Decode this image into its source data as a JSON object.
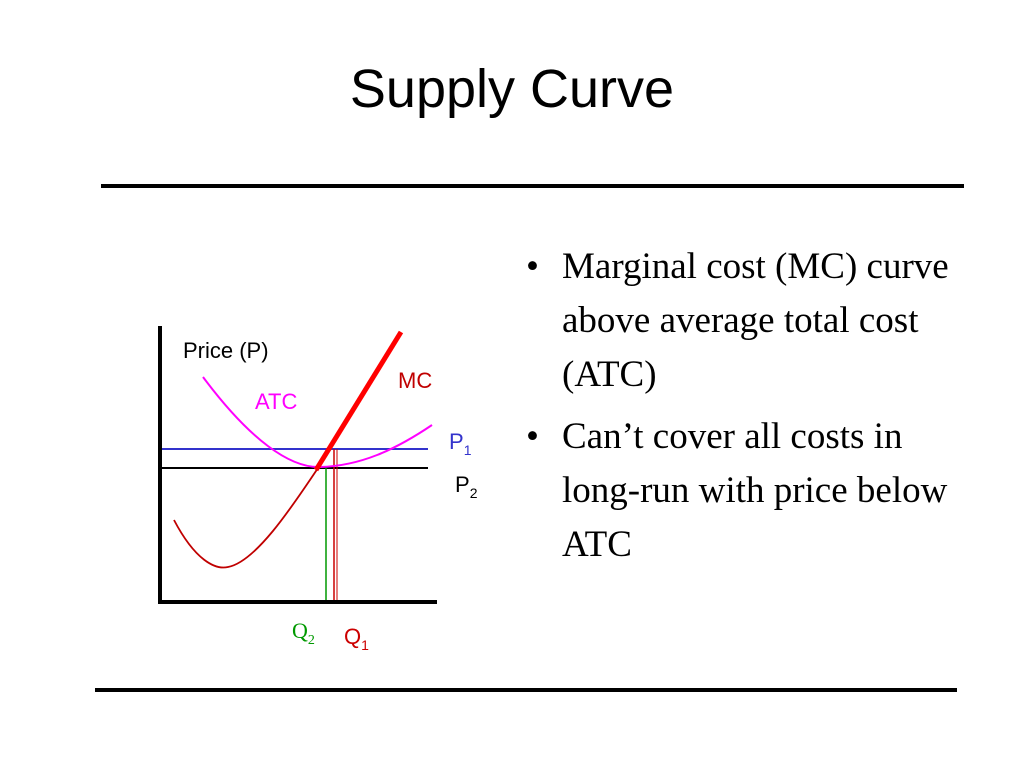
{
  "title": "Supply Curve",
  "bullets": [
    "Marginal cost (MC) curve above average total cost (ATC)",
    "Can’t cover all costs in long-run with price below ATC"
  ],
  "diagram": {
    "y_axis_label": "Price (P)",
    "curve_mc_label": "MC",
    "curve_atc_label": "ATC",
    "p1_label": "P",
    "p1_sub": "1",
    "p2_label": "P",
    "p2_sub": "2",
    "q2_label": "Q",
    "q2_sub": "2",
    "q1_label": "Q",
    "q1_sub": "1"
  },
  "colors": {
    "mc": "#c00000",
    "mc_supply": "#ff0000",
    "atc": "#ff00ff",
    "p1": "#3333cc",
    "p2": "#000000",
    "q2": "#009900",
    "q1": "#cc0000",
    "axes": "#000000"
  }
}
